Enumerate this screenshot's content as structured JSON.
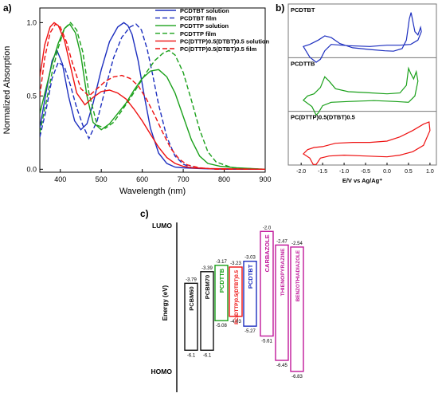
{
  "panel_labels": {
    "a": "a)",
    "b": "b)",
    "c": "c)"
  },
  "chart_data": [
    {
      "type": "line",
      "panel": "a",
      "xlabel": "Wavelength (nm)",
      "ylabel": "Normalized Absorption",
      "xlim": [
        350,
        900
      ],
      "ylim": [
        -0.02,
        1.1
      ],
      "xticks": [
        "400",
        "500",
        "600",
        "700",
        "800",
        "900"
      ],
      "yticks": [
        "0.0",
        "0.5",
        "1.0"
      ],
      "legend_position": "top-right",
      "series": [
        {
          "name": "PCDTBT solution",
          "color": "#1d2fbf",
          "dash": false,
          "x": [
            350,
            365,
            380,
            392,
            405,
            420,
            435,
            450,
            465,
            480,
            500,
            520,
            540,
            555,
            565,
            575,
            590,
            605,
            620,
            640,
            660,
            680,
            700,
            740,
            800,
            900
          ],
          "y": [
            0.28,
            0.52,
            0.74,
            0.81,
            0.72,
            0.5,
            0.33,
            0.27,
            0.31,
            0.45,
            0.68,
            0.87,
            0.97,
            1.0,
            0.98,
            0.92,
            0.74,
            0.5,
            0.28,
            0.11,
            0.04,
            0.015,
            0.01,
            0.005,
            0.0,
            0.0
          ]
        },
        {
          "name": "PCDTBT film",
          "color": "#1d2fbf",
          "dash": true,
          "x": [
            350,
            365,
            380,
            395,
            410,
            425,
            440,
            455,
            470,
            490,
            510,
            530,
            550,
            570,
            585,
            598,
            612,
            625,
            640,
            660,
            680,
            700,
            720,
            760,
            820,
            900
          ],
          "y": [
            0.22,
            0.4,
            0.62,
            0.73,
            0.7,
            0.57,
            0.42,
            0.3,
            0.21,
            0.33,
            0.55,
            0.76,
            0.9,
            0.97,
            0.99,
            0.95,
            0.82,
            0.65,
            0.44,
            0.22,
            0.09,
            0.035,
            0.012,
            0.005,
            0.0,
            0.0
          ]
        },
        {
          "name": "PCDTTP solution",
          "color": "#1aa01a",
          "dash": false,
          "x": [
            350,
            365,
            380,
            395,
            410,
            423,
            437,
            450,
            465,
            480,
            500,
            520,
            540,
            560,
            580,
            600,
            620,
            640,
            660,
            680,
            700,
            720,
            740,
            760,
            790,
            830,
            900
          ],
          "y": [
            0.38,
            0.55,
            0.72,
            0.86,
            0.96,
            0.99,
            0.93,
            0.78,
            0.5,
            0.32,
            0.27,
            0.31,
            0.38,
            0.45,
            0.54,
            0.62,
            0.67,
            0.68,
            0.63,
            0.52,
            0.36,
            0.2,
            0.09,
            0.04,
            0.02,
            0.01,
            0.0
          ]
        },
        {
          "name": "PCDTTP film",
          "color": "#1aa01a",
          "dash": true,
          "x": [
            350,
            365,
            380,
            395,
            410,
            425,
            440,
            455,
            470,
            490,
            510,
            530,
            550,
            570,
            590,
            610,
            630,
            650,
            665,
            680,
            700,
            720,
            740,
            760,
            780,
            820,
            900
          ],
          "y": [
            0.25,
            0.45,
            0.66,
            0.83,
            0.96,
            1.0,
            0.95,
            0.8,
            0.52,
            0.3,
            0.28,
            0.32,
            0.4,
            0.48,
            0.57,
            0.66,
            0.74,
            0.79,
            0.81,
            0.78,
            0.66,
            0.47,
            0.27,
            0.12,
            0.05,
            0.01,
            0.0
          ]
        },
        {
          "name": "PC(DTTP)0.5(DTBT)0.5 solution",
          "color": "#ee1111",
          "dash": false,
          "x": [
            350,
            362,
            375,
            385,
            395,
            410,
            425,
            440,
            460,
            480,
            500,
            520,
            540,
            560,
            580,
            600,
            620,
            640,
            660,
            680,
            700,
            720,
            760,
            900
          ],
          "y": [
            0.63,
            0.85,
            0.97,
            1.0,
            0.98,
            0.88,
            0.7,
            0.52,
            0.44,
            0.49,
            0.53,
            0.54,
            0.52,
            0.48,
            0.41,
            0.33,
            0.24,
            0.15,
            0.08,
            0.04,
            0.02,
            0.01,
            0.005,
            0.0
          ]
        },
        {
          "name": "PC(DTTP)0.5(DTBT)0.5 film",
          "color": "#ee1111",
          "dash": true,
          "x": [
            350,
            362,
            375,
            388,
            400,
            415,
            430,
            450,
            470,
            490,
            510,
            530,
            550,
            570,
            590,
            610,
            630,
            650,
            670,
            690,
            710,
            740,
            780,
            900
          ],
          "y": [
            0.5,
            0.76,
            0.93,
            0.99,
            0.97,
            0.87,
            0.72,
            0.55,
            0.5,
            0.55,
            0.6,
            0.63,
            0.64,
            0.62,
            0.57,
            0.48,
            0.37,
            0.25,
            0.14,
            0.07,
            0.03,
            0.01,
            0.0,
            0.0
          ]
        }
      ]
    },
    {
      "type": "line",
      "panel": "b",
      "xlabel": "E/V vs Ag/Ag⁺",
      "xlim": [
        -2.3,
        1.15
      ],
      "xticks": [
        "-2.0",
        "-1.5",
        "-1.0",
        "-0.5",
        "0.0",
        "0.5",
        "1.0"
      ],
      "subplots": [
        {
          "name": "PCDTBT",
          "color": "#1d2fbf",
          "loop": [
            [
              -1.95,
              0.15
            ],
            [
              -1.8,
              0.2
            ],
            [
              -1.6,
              0.3
            ],
            [
              -1.45,
              0.4
            ],
            [
              -1.3,
              0.36
            ],
            [
              -1.1,
              0.22
            ],
            [
              -0.8,
              0.12
            ],
            [
              -0.4,
              0.08
            ],
            [
              -0.05,
              0.05
            ],
            [
              0.15,
              0.04
            ],
            [
              0.35,
              0.1
            ],
            [
              0.45,
              0.3
            ],
            [
              0.52,
              0.8
            ],
            [
              0.56,
              0.95
            ],
            [
              0.6,
              0.75
            ],
            [
              0.65,
              0.5
            ],
            [
              0.72,
              0.42
            ],
            [
              0.78,
              0.6
            ],
            [
              0.8,
              0.5
            ],
            [
              0.72,
              0.3
            ],
            [
              0.55,
              0.2
            ],
            [
              0.3,
              0.18
            ],
            [
              0.0,
              0.18
            ],
            [
              -0.4,
              0.15
            ],
            [
              -0.9,
              0.17
            ],
            [
              -1.3,
              0.2
            ],
            [
              -1.45,
              0.05
            ],
            [
              -1.55,
              -0.15
            ],
            [
              -1.65,
              -0.22
            ],
            [
              -1.8,
              -0.1
            ],
            [
              -1.95,
              0.15
            ]
          ]
        },
        {
          "name": "PCDTTB",
          "color": "#1aa01a",
          "loop": [
            [
              -1.95,
              0.15
            ],
            [
              -1.85,
              0.25
            ],
            [
              -1.7,
              0.3
            ],
            [
              -1.55,
              0.45
            ],
            [
              -1.45,
              0.7
            ],
            [
              -1.35,
              0.6
            ],
            [
              -1.2,
              0.42
            ],
            [
              -0.9,
              0.35
            ],
            [
              -0.5,
              0.33
            ],
            [
              0.0,
              0.3
            ],
            [
              0.3,
              0.32
            ],
            [
              0.45,
              0.5
            ],
            [
              0.5,
              0.9
            ],
            [
              0.55,
              0.78
            ],
            [
              0.62,
              0.65
            ],
            [
              0.68,
              0.82
            ],
            [
              0.72,
              0.6
            ],
            [
              0.65,
              0.25
            ],
            [
              0.5,
              0.1
            ],
            [
              0.2,
              0.12
            ],
            [
              -0.3,
              0.14
            ],
            [
              -0.9,
              0.12
            ],
            [
              -1.3,
              0.1
            ],
            [
              -1.5,
              0.02
            ],
            [
              -1.6,
              -0.15
            ],
            [
              -1.65,
              -0.2
            ],
            [
              -1.75,
              0.0
            ],
            [
              -1.95,
              0.15
            ]
          ]
        },
        {
          "name": "PC(DTTP)0.5(DTBT)0.5",
          "color": "#ee1111",
          "loop": [
            [
              -1.95,
              0.15
            ],
            [
              -1.85,
              0.25
            ],
            [
              -1.7,
              0.3
            ],
            [
              -1.5,
              0.32
            ],
            [
              -1.2,
              0.4
            ],
            [
              -0.8,
              0.42
            ],
            [
              -0.4,
              0.42
            ],
            [
              0.0,
              0.45
            ],
            [
              0.3,
              0.55
            ],
            [
              0.6,
              0.7
            ],
            [
              0.85,
              0.85
            ],
            [
              0.98,
              0.9
            ],
            [
              1.0,
              0.7
            ],
            [
              0.85,
              0.35
            ],
            [
              0.6,
              0.2
            ],
            [
              0.3,
              0.12
            ],
            [
              0.0,
              0.08
            ],
            [
              -0.5,
              0.1
            ],
            [
              -1.0,
              0.12
            ],
            [
              -1.35,
              0.1
            ],
            [
              -1.55,
              0.05
            ],
            [
              -1.65,
              -0.1
            ],
            [
              -1.72,
              -0.1
            ],
            [
              -1.8,
              0.05
            ],
            [
              -1.95,
              0.15
            ]
          ]
        }
      ]
    },
    {
      "type": "bar",
      "panel": "c",
      "ylabel": "Energy (eV)",
      "y_top_label": "LUMO",
      "y_bottom_label": "HOMO",
      "ylim": [
        -7.0,
        -1.8
      ],
      "bars": [
        {
          "name": "PCBM60",
          "color": "#111111",
          "lumo": -3.79,
          "homo": -6.1,
          "lumo_label": "-3.79",
          "homo_label": "-6.1"
        },
        {
          "name": "PCBM70",
          "color": "#111111",
          "lumo": -3.39,
          "homo": -6.1,
          "lumo_label": "-3.39",
          "homo_label": "-6.1"
        },
        {
          "name": "PCDTTB",
          "color": "#1aa01a",
          "lumo": -3.17,
          "homo": -5.08,
          "lumo_label": "-3.17",
          "homo_label": "-5.08"
        },
        {
          "name": "PC(DTTP)0.5(DTBT)0.5",
          "color": "#ee1111",
          "lumo": -3.23,
          "homo": -4.93,
          "lumo_label": "-3.23",
          "homo_label": "-4.93"
        },
        {
          "name": "PCDTBT",
          "color": "#1d2fbf",
          "lumo": -3.03,
          "homo": -5.27,
          "lumo_label": "-3.03",
          "homo_label": "-5.27"
        },
        {
          "name": "CARBAZOLE",
          "color": "#c0189a",
          "lumo": -2.0,
          "homo": -5.61,
          "lumo_label": "-2.0",
          "homo_label": "-5.61"
        },
        {
          "name": "THIENOPYRAZINE",
          "color": "#c0189a",
          "lumo": -2.47,
          "homo": -6.45,
          "lumo_label": "-2.47",
          "homo_label": "-6.45"
        },
        {
          "name": "BENZOTHIADIAZOLE",
          "color": "#c0189a",
          "lumo": -2.54,
          "homo": -6.83,
          "lumo_label": "-2.54",
          "homo_label": "-6.83"
        }
      ]
    }
  ]
}
